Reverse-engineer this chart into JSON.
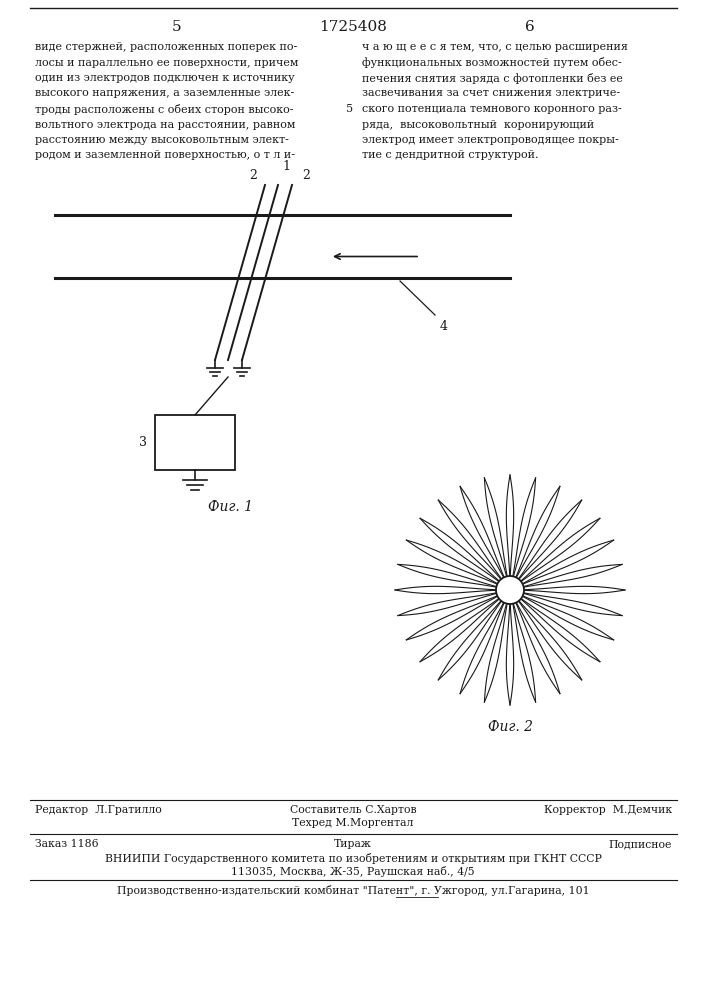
{
  "bg_color": "#ffffff",
  "page_num_left": "5",
  "page_num_center": "1725408",
  "page_num_right": "6",
  "col_left_text": [
    "виде стержней, расположенных поперек по-",
    "лосы и параллельно ее поверхности, причем",
    "один из электродов подключен к источнику",
    "высокого напряжения, а заземленные элек-",
    "троды расположены с обеих сторон высоко-",
    "вольтного электрода на расстоянии, равном",
    "расстоянию между высоковольтным элект-",
    "родом и заземленной поверхностью, о т л и-"
  ],
  "col_right_text": [
    "ч а ю щ е е с я тем, что, с целью расширения",
    "функциональных возможностей путем обес-",
    "печения снятия заряда с фотопленки без ее",
    "засвечивания за счет снижения электриче-",
    "ского потенциала темнового коронного раз-",
    "ряда,  высоковольтный  коронирующий",
    "электрод имеет электропроводящее покры-",
    "тие с дендритной структурой."
  ],
  "fig1_label": "Фиг. 1",
  "fig2_label": "Фиг. 2",
  "footer_line1_col1": "Редактор  Л.Гратилло",
  "footer_line1_col2": "Составитель С.Хартов",
  "footer_line1_col2b": "Техред М.Моргентал",
  "footer_line1_col3": "Корректор  М.Демчик",
  "footer_line2_col1": "Заказ 1186",
  "footer_line2_col2": "Тираж",
  "footer_line2_col3": "Подписное",
  "footer_vniiipi": "ВНИИПИ Государственного комитета по изобретениям и открытиям при ГКНТ СССР",
  "footer_address": "113035, Москва, Ж-35, Раушская наб., 4/5",
  "footer_publisher": "Производственно-издательский комбинат \"Патент\", г. Ужгород, ул.Гагарина, 101",
  "line_color": "#1a1a1a",
  "text_color": "#1a1a1a"
}
